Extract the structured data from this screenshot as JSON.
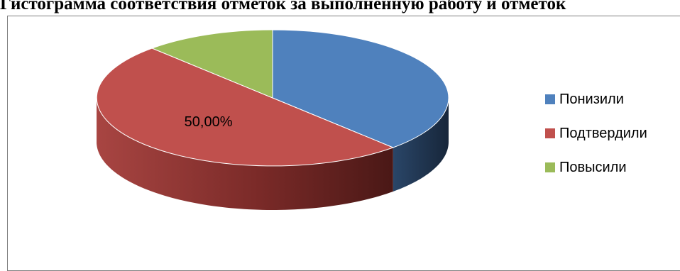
{
  "title": "Гистограмма соответствия отметок за выполненную работу и отметок",
  "chart_data": {
    "type": "pie",
    "title": "",
    "slices": [
      {
        "name": "Понизили",
        "value": 38,
        "color": "#4f81bd",
        "side_color": "#1f3552"
      },
      {
        "name": "Подтвердили",
        "value": 50,
        "color": "#c0504d",
        "side_color": "#6e2624"
      },
      {
        "name": "Повысили",
        "value": 12,
        "color": "#9bbb59",
        "side_color": "#5b6f32"
      }
    ],
    "data_labels": [
      {
        "series": "Подтвердили",
        "text": "50,00%"
      }
    ],
    "legend_position": "right",
    "style": "3d"
  }
}
